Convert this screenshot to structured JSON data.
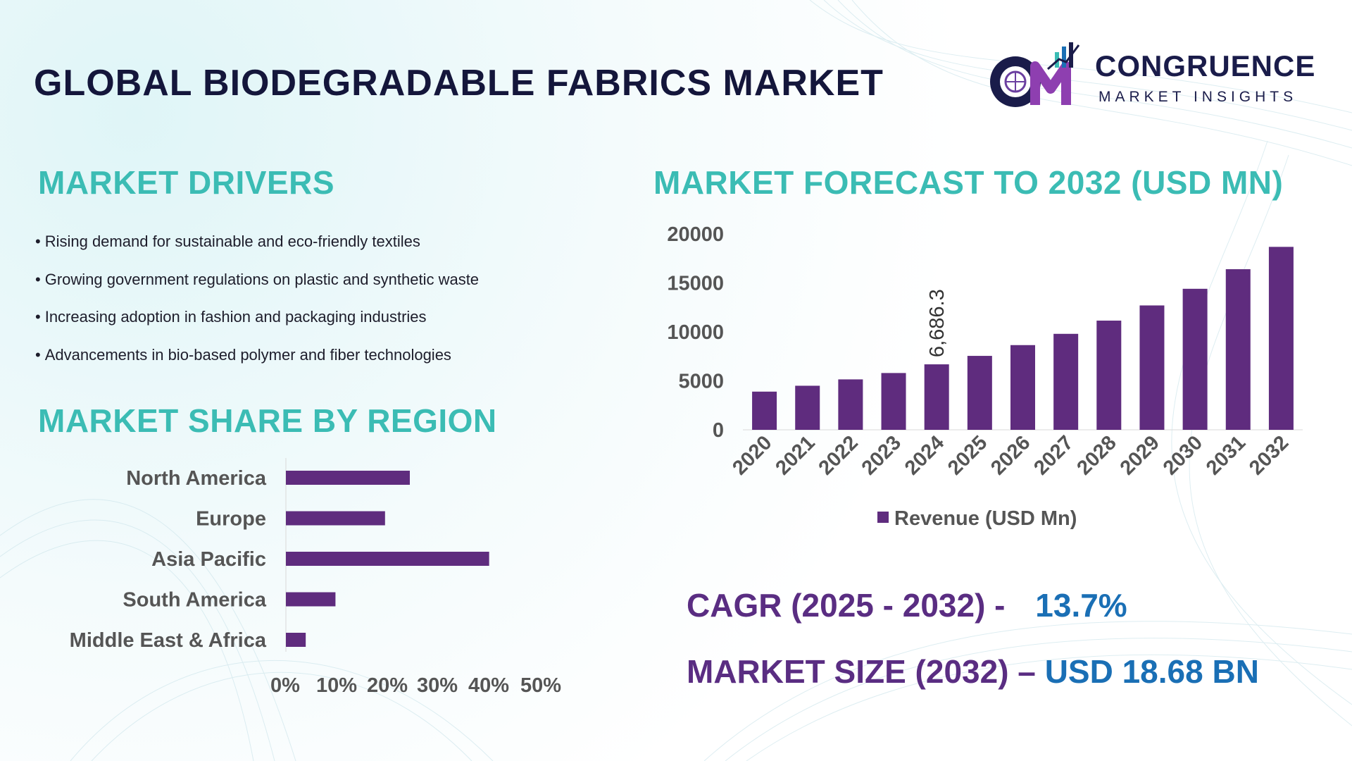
{
  "title": "GLOBAL BIODEGRADABLE FABRICS MARKET",
  "logo": {
    "monogram": "CM",
    "name": "CONGRUENCE",
    "tagline": "MARKET INSIGHTS"
  },
  "drivers": {
    "heading": "MARKET DRIVERS",
    "items": [
      "Rising demand for sustainable and eco-friendly textiles",
      "Growing government regulations on plastic and synthetic waste",
      "Increasing adoption in fashion and packaging industries",
      "Advancements in bio-based polymer and fiber technologies"
    ]
  },
  "region": {
    "heading": "MARKET SHARE BY REGION"
  },
  "forecast": {
    "heading": "MARKET FORECAST TO 2032 (USD MN)"
  },
  "kpis": {
    "cagr_label": "CAGR (2025 - 2032) -",
    "cagr_value": "13.7%",
    "size_label": "MARKET SIZE (2032) –",
    "size_value": "USD 18.68 BN"
  },
  "colors": {
    "bar": "#5f2c7e",
    "heading": "#3bbcb4",
    "kpi_label": "#5a2d82",
    "kpi_value": "#1a6fb5",
    "title": "#14163b"
  },
  "chart_data": [
    {
      "type": "bar",
      "orientation": "horizontal",
      "title": "MARKET SHARE BY REGION",
      "categories": [
        "North America",
        "Europe",
        "Asia Pacific",
        "South America",
        "Middle East & Africa"
      ],
      "values": [
        25,
        20,
        41,
        10,
        4
      ],
      "xlim": [
        0,
        50
      ],
      "xticks": [
        "0%",
        "10%",
        "20%",
        "30%",
        "40%",
        "50%"
      ],
      "grid": false
    },
    {
      "type": "bar",
      "orientation": "vertical",
      "title": "MARKET FORECAST TO 2032 (USD MN)",
      "categories": [
        "2020",
        "2021",
        "2022",
        "2023",
        "2024",
        "2025",
        "2026",
        "2027",
        "2028",
        "2029",
        "2030",
        "2031",
        "2032"
      ],
      "series": [
        {
          "name": "Revenue (USD Mn)",
          "values": [
            3900,
            4500,
            5150,
            5800,
            6686.3,
            7550,
            8650,
            9800,
            11150,
            12700,
            14400,
            16400,
            18680
          ]
        }
      ],
      "data_labels": [
        {
          "category": "2024",
          "text": "6,686.3"
        }
      ],
      "ylim": [
        0,
        20000
      ],
      "yticks": [
        "0",
        "5000",
        "10000",
        "15000",
        "20000"
      ],
      "legend": "bottom",
      "grid": false
    }
  ]
}
